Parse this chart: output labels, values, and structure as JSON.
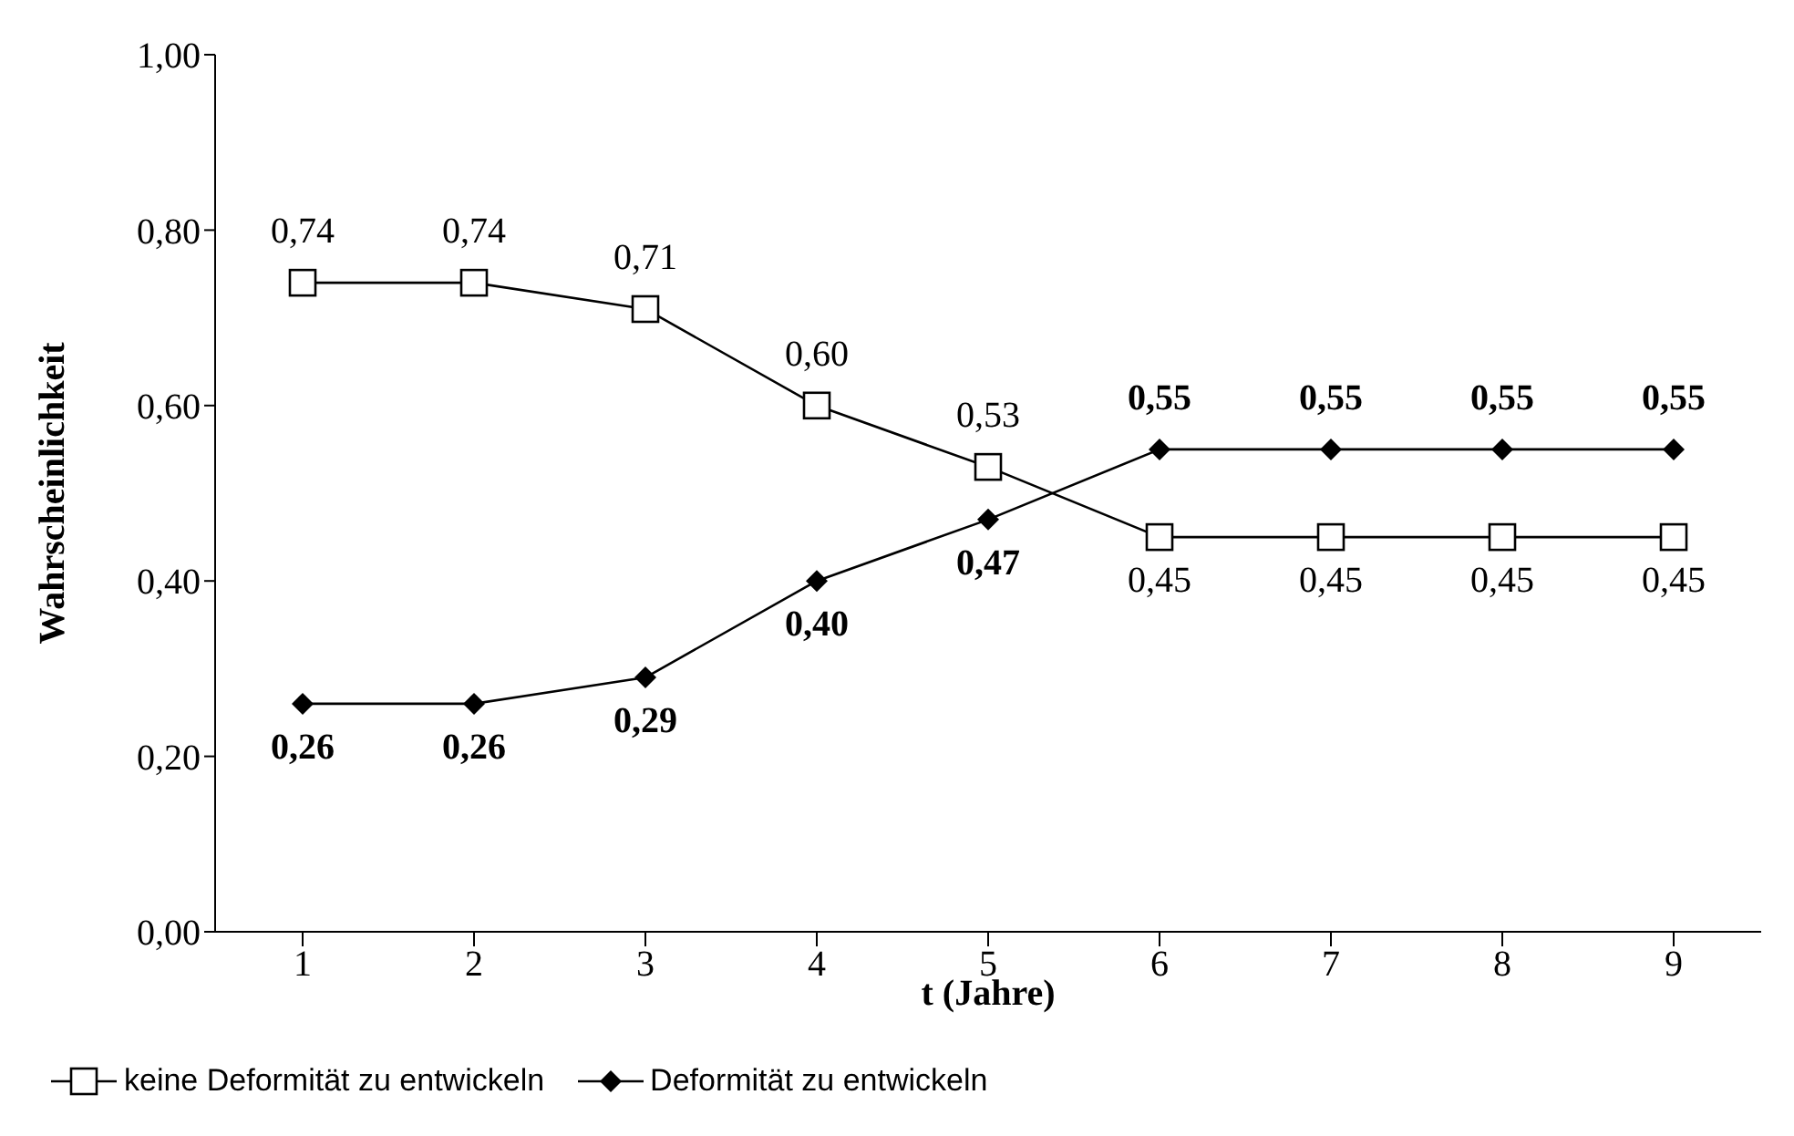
{
  "chart_data": {
    "type": "line",
    "xlabel": "t (Jahre)",
    "ylabel": "Wahrscheinlichkeit",
    "categories": [
      "1",
      "2",
      "3",
      "4",
      "5",
      "6",
      "7",
      "8",
      "9"
    ],
    "series": [
      {
        "name": "keine Deformität zu entwickeln",
        "color": "#000000",
        "marker": "square",
        "values": [
          0.74,
          0.74,
          0.71,
          0.6,
          0.53,
          0.45,
          0.45,
          0.45,
          0.45
        ],
        "value_labels": [
          "0,74",
          "0,74",
          "0,71",
          "0,60",
          "0,53",
          "0,45",
          "0,45",
          "0,45",
          "0,45"
        ]
      },
      {
        "name": "Deformität zu entwickeln",
        "color": "#000000",
        "marker": "diamond",
        "values": [
          0.26,
          0.26,
          0.29,
          0.4,
          0.47,
          0.55,
          0.55,
          0.55,
          0.55
        ],
        "value_labels": [
          "0,26",
          "0,26",
          "0,29",
          "0,40",
          "0,47",
          "0,55",
          "0,55",
          "0,55",
          "0,55"
        ]
      }
    ],
    "ylim": [
      0,
      1
    ],
    "yticks": [
      {
        "value": 0,
        "label": "0,00"
      },
      {
        "value": 0.2,
        "label": "0,20"
      },
      {
        "value": 0.4,
        "label": "0,40"
      },
      {
        "value": 0.6,
        "label": "0,60"
      },
      {
        "value": 0.8,
        "label": "0,80"
      },
      {
        "value": 1,
        "label": "1,00"
      }
    ],
    "grid": false,
    "legend": "bottom",
    "line_style": "solid"
  }
}
